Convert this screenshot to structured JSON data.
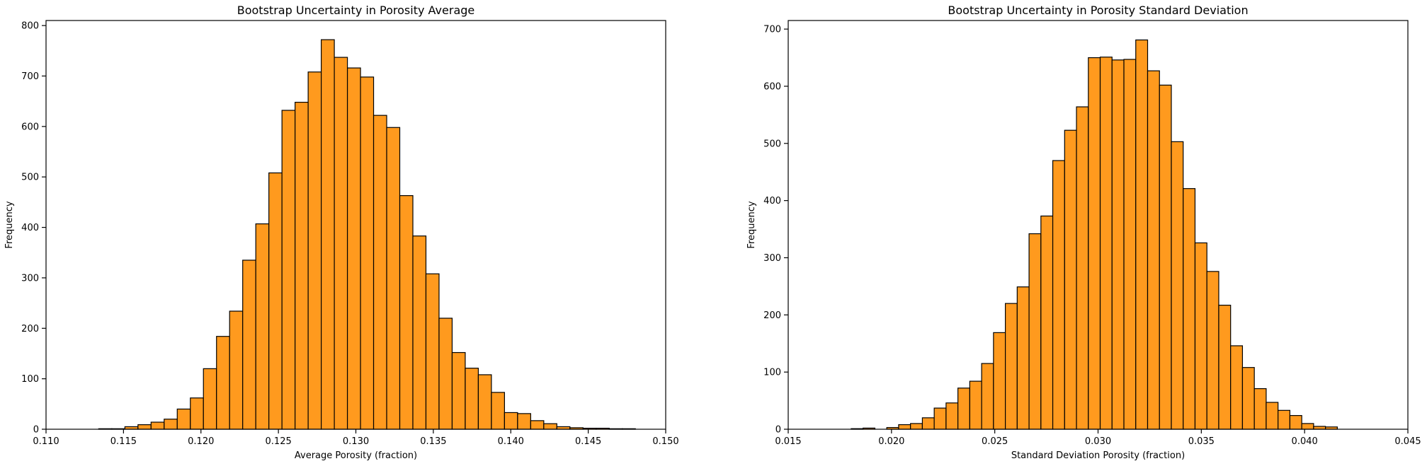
{
  "chart_data": [
    {
      "type": "bar",
      "histogram": true,
      "title": "Bootstrap Uncertainty in Porosity Average",
      "xlabel": "Average Porosity (fraction)",
      "ylabel": "Frequency",
      "xlim": [
        0.11,
        0.15
      ],
      "ylim": [
        0,
        810
      ],
      "xticks": [
        "0.110",
        "0.115",
        "0.120",
        "0.125",
        "0.130",
        "0.135",
        "0.140",
        "0.145",
        "0.150"
      ],
      "yticks": [
        "0",
        "100",
        "200",
        "300",
        "400",
        "500",
        "600",
        "700",
        "800"
      ],
      "bin_start": 0.1134,
      "bin_width": 0.000845,
      "values": [
        1,
        1,
        5,
        9,
        14,
        20,
        40,
        62,
        120,
        184,
        234,
        335,
        407,
        508,
        632,
        648,
        708,
        772,
        737,
        716,
        698,
        622,
        598,
        463,
        383,
        308,
        220,
        152,
        121,
        108,
        73,
        33,
        31,
        17,
        11,
        5,
        3,
        2,
        2,
        1,
        1
      ],
      "bar_color": "#ff9a1e",
      "edge_color": "#000000",
      "grid": false
    },
    {
      "type": "bar",
      "histogram": true,
      "title": "Bootstrap Uncertainty in Porosity Standard Deviation",
      "xlabel": "Standard Deviation Porosity (fraction)",
      "ylabel": "Frequency",
      "xlim": [
        0.015,
        0.045
      ],
      "ylim": [
        0,
        715
      ],
      "xticks": [
        "0.015",
        "0.020",
        "0.025",
        "0.030",
        "0.035",
        "0.040",
        "0.045"
      ],
      "yticks": [
        "0",
        "100",
        "200",
        "300",
        "400",
        "500",
        "600",
        "700"
      ],
      "bin_start": 0.01805,
      "bin_width": 0.000574,
      "values": [
        1,
        2,
        0,
        3,
        8,
        10,
        20,
        37,
        46,
        72,
        84,
        115,
        169,
        220,
        249,
        342,
        373,
        470,
        523,
        564,
        650,
        651,
        646,
        647,
        681,
        627,
        602,
        503,
        421,
        326,
        276,
        217,
        146,
        108,
        71,
        47,
        33,
        24,
        10,
        5,
        4
      ],
      "bar_color": "#ff9a1e",
      "edge_color": "#000000",
      "grid": false
    }
  ]
}
